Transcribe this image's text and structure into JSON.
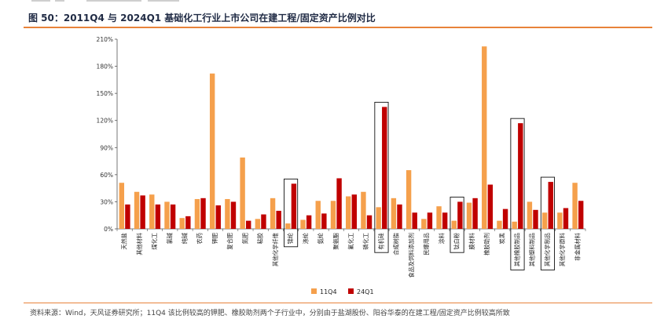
{
  "header": {
    "title": "图 50：2011Q4 与 2024Q1 基础化工行业上市公司在建工程/固定资产比例对比"
  },
  "footer": {
    "source": "资料来源：Wind，天风证券研究所；11Q4 该比例较高的钾肥、橡胶助剂两个子行业中，分别由于盐湖股份、阳谷华泰的在建工程/固定资产比例较高所致"
  },
  "colors": {
    "s1": "#f5a04c",
    "s2": "#c00000",
    "accent": "#e8823a"
  },
  "chart_data": {
    "type": "bar",
    "title": "",
    "xlabel": "",
    "ylabel": "",
    "ylim": [
      0,
      210
    ],
    "yticks": [
      "0%",
      "30%",
      "60%",
      "90%",
      "120%",
      "150%",
      "180%",
      "210%"
    ],
    "categories": [
      "天然盐",
      "其他材料",
      "煤化工",
      "氯碱",
      "纯碱",
      "农药",
      "钾肥",
      "复合肥",
      "氮肥",
      "粘胶",
      "其他化学纤维",
      "锦纶",
      "涤纶",
      "氨纶",
      "聚氨酯",
      "氟化工",
      "磷化工",
      "有机硅",
      "合成树脂",
      "食品及饲料添加剂",
      "民爆用品",
      "涂料",
      "钛白粉",
      "膜材料",
      "橡胶助剂",
      "炭黑",
      "其他橡胶制品",
      "其他塑料制品",
      "其他化学制品",
      "其他化学原料",
      "非金属材料"
    ],
    "series": [
      {
        "name": "11Q4",
        "values": [
          51,
          41,
          38,
          30,
          12,
          33,
          172,
          33,
          79,
          11,
          34,
          6,
          10,
          31,
          31,
          36,
          41,
          24,
          34,
          65,
          11,
          25,
          9,
          29,
          202,
          9,
          8,
          30,
          18,
          18,
          51
        ]
      },
      {
        "name": "24Q1",
        "values": [
          27,
          37,
          27,
          27,
          14,
          34,
          26,
          30,
          9,
          16,
          20,
          50,
          15,
          17,
          56,
          38,
          15,
          135,
          27,
          18,
          18,
          18,
          30,
          34,
          49,
          22,
          117,
          21,
          52,
          23,
          31
        ]
      }
    ],
    "highlighted": [
      "锦纶",
      "有机硅",
      "钛白粉",
      "其他橡胶制品",
      "其他化学制品"
    ],
    "legend": [
      "11Q4",
      "24Q1"
    ],
    "legend_position": "bottom",
    "grid": false
  }
}
